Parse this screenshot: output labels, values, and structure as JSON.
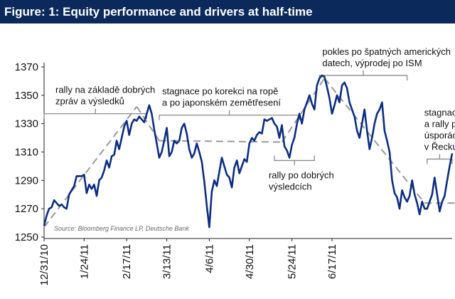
{
  "figure": {
    "title": "Figure: 1: Equity performance and drivers at half-time"
  },
  "colors": {
    "title_bg": "#0b2a5b",
    "series": "#0b2d83",
    "trend": "#9a9a9a",
    "bracket": "#8a8a8a"
  },
  "chart_data": {
    "type": "line",
    "title": "Figure: 1: Equity performance and drivers at half-time",
    "xlabel": "",
    "ylabel": "",
    "ylim": [
      1250,
      1370
    ],
    "yticks": [
      1250,
      1270,
      1290,
      1310,
      1330,
      1350,
      1370
    ],
    "xticks": [
      {
        "label": "12/31/10",
        "i": 0
      },
      {
        "label": "1/24/11",
        "i": 16
      },
      {
        "label": "2/17/11",
        "i": 33
      },
      {
        "label": "3/13/11",
        "i": 49
      },
      {
        "label": "4/6/11",
        "i": 66
      },
      {
        "label": "4/30/11",
        "i": 82
      },
      {
        "label": "5/24/11",
        "i": 99
      },
      {
        "label": "6/17/11",
        "i": 115
      }
    ],
    "grid": false,
    "source": "Source: Bloomberg Finance LP, Deutsche Bank",
    "series": [
      {
        "values": [
          1258,
          1265,
          1270,
          1271,
          1276,
          1274,
          1272,
          1273,
          1271,
          1270,
          1280,
          1283,
          1286,
          1293,
          1293,
          1293,
          1294,
          1281,
          1287,
          1284,
          1287,
          1279,
          1290,
          1292,
          1297,
          1304,
          1299,
          1307,
          1308,
          1318,
          1312,
          1320,
          1328,
          1332,
          1322,
          1330,
          1333,
          1332,
          1335,
          1333,
          1331,
          1337,
          1343,
          1337,
          1326,
          1316,
          1306,
          1310,
          1318,
          1327,
          1307,
          1310,
          1318,
          1316,
          1318,
          1327,
          1330,
          1323,
          1312,
          1306,
          1309,
          1316,
          1310,
          1303,
          1289,
          1272,
          1257,
          1282,
          1290,
          1286,
          1296,
          1306,
          1300,
          1294,
          1292,
          1285,
          1299,
          1304,
          1295,
          1300,
          1305,
          1303,
          1316,
          1320,
          1318,
          1322,
          1324,
          1323,
          1333,
          1332,
          1333,
          1334,
          1330,
          1328,
          1320,
          1329,
          1314,
          1311,
          1306,
          1315,
          1320,
          1330,
          1337,
          1330,
          1340,
          1345,
          1350,
          1344,
          1340,
          1357,
          1362,
          1364,
          1363,
          1356,
          1348,
          1337,
          1343,
          1350,
          1345,
          1357,
          1359,
          1355,
          1345,
          1340,
          1335,
          1325,
          1320,
          1330,
          1340,
          1325,
          1312,
          1320,
          1330,
          1337,
          1340,
          1345,
          1325,
          1318,
          1310,
          1290,
          1281,
          1278,
          1270,
          1283,
          1278,
          1275,
          1279,
          1290,
          1280,
          1274,
          1266,
          1275,
          1270,
          1270,
          1275,
          1280,
          1292,
          1280,
          1268,
          1275,
          1279,
          1290,
          1300,
          1309
        ]
      }
    ],
    "trend_segments": [
      {
        "from": 0,
        "from_value": 1257,
        "to": 37,
        "to_value": 1342
      },
      {
        "from": 37,
        "from_value": 1342,
        "to": 46,
        "to_value": 1318
      },
      {
        "from": 46,
        "from_value": 1318,
        "to": 95,
        "to_value": 1317
      },
      {
        "from": 95,
        "from_value": 1317,
        "to": 112,
        "to_value": 1362
      },
      {
        "from": 112,
        "from_value": 1362,
        "to": 152,
        "to_value": 1274
      },
      {
        "from": 152,
        "from_value": 1274,
        "to": 164,
        "to_value": 1274
      }
    ],
    "annotations": [
      {
        "lines": [
          "rally na základě dobrých",
          "zpráv a výsledků"
        ],
        "bracket_from": 0,
        "bracket_to": 41,
        "bracket_value": 1337,
        "bracket_dir": "down"
      },
      {
        "lines": [
          "stagnace po korekci na ropě",
          "a po japonském zemětřesení"
        ],
        "bracket_from": 46,
        "bracket_to": 102,
        "bracket_value": 1336,
        "bracket_dir": "down"
      },
      {
        "lines": [
          "pokles po špatných amerických",
          "datech, výprodej po ISM"
        ],
        "bracket_from": 110,
        "bracket_to": 145,
        "bracket_value": 1364,
        "bracket_dir": "down"
      },
      {
        "lines": [
          "rally po dobrých",
          "výsledcích"
        ],
        "bracket_from": 92,
        "bracket_to": 108,
        "bracket_value": 1304,
        "bracket_dir": "up"
      },
      {
        "lines": [
          "stagnace",
          "a rally po",
          "úsporách",
          "v Řecku"
        ],
        "bracket_from": 153,
        "bracket_to": 163,
        "bracket_value": 1305,
        "bracket_dir": "down"
      }
    ]
  }
}
